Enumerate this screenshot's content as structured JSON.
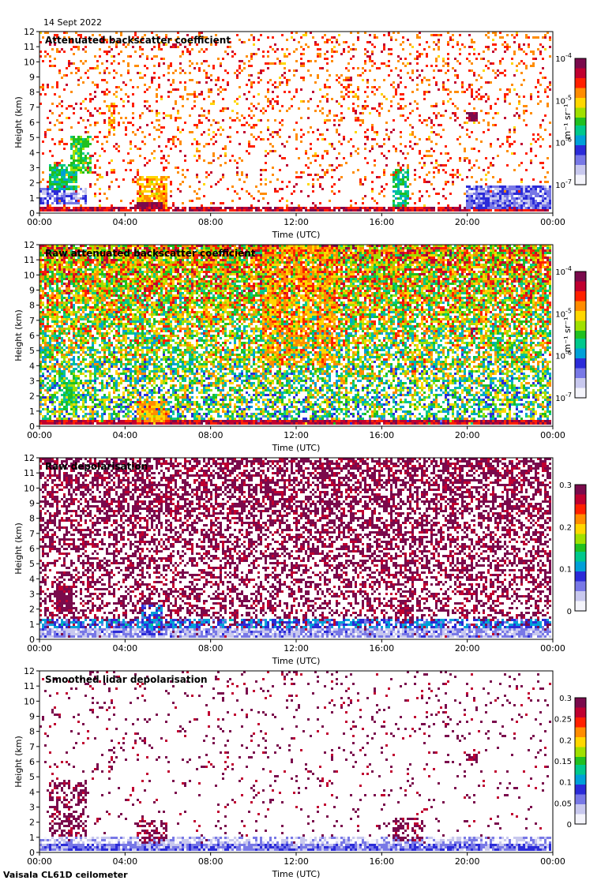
{
  "date_label": "14 Sept 2022",
  "footer": "Vaisala CL61D ceilometer",
  "palette": [
    "#f4f4fb",
    "#c8c8ee",
    "#7878e6",
    "#2b2bd8",
    "#00a0d8",
    "#00c88c",
    "#20c020",
    "#a0e000",
    "#ffd700",
    "#ff8c00",
    "#ff2000",
    "#c00030",
    "#7a0a4c"
  ],
  "chart_data": [
    {
      "type": "heatmap",
      "title": "Attenuated backscatter coefficient",
      "xlabel": "Time (UTC)",
      "ylabel": "Height (km)",
      "x_ticks": [
        "00:00",
        "04:00",
        "08:00",
        "12:00",
        "16:00",
        "20:00",
        "00:00"
      ],
      "xlim_hours": [
        0,
        24
      ],
      "y_ticks": [
        0,
        1,
        2,
        3,
        4,
        5,
        6,
        7,
        8,
        9,
        10,
        11,
        12
      ],
      "ylim_km": [
        0,
        12
      ],
      "colorbar": {
        "scale": "log",
        "unit": "m⁻¹ sr⁻¹",
        "ticks": [
          {
            "base": "10",
            "exp": "-4"
          },
          {
            "base": "10",
            "exp": "-5"
          },
          {
            "base": "10",
            "exp": "-6"
          },
          {
            "base": "10",
            "exp": "-7"
          }
        ],
        "range": [
          1e-07,
          0.0001
        ]
      },
      "features": [
        {
          "t0": 0.0,
          "t1": 24.0,
          "z0": 0.0,
          "z1": 0.25,
          "v": 0.88,
          "density": 0.9
        },
        {
          "t0": 0.0,
          "t1": 2.2,
          "z0": 0.4,
          "z1": 1.5,
          "v": 0.2,
          "density": 0.7
        },
        {
          "t0": 0.4,
          "t1": 1.8,
          "z0": 1.5,
          "z1": 3.2,
          "v": 0.45,
          "density": 0.85
        },
        {
          "t0": 1.5,
          "t1": 2.4,
          "z0": 2.5,
          "z1": 5.0,
          "v": 0.5,
          "density": 0.7
        },
        {
          "t0": 3.2,
          "t1": 3.6,
          "z0": 5.0,
          "z1": 7.3,
          "v": 0.72,
          "density": 0.6
        },
        {
          "t0": 4.6,
          "t1": 6.0,
          "z0": 0.2,
          "z1": 2.4,
          "v": 0.7,
          "density": 0.8
        },
        {
          "t0": 4.6,
          "t1": 5.8,
          "z0": 0.2,
          "z1": 0.6,
          "v": 0.93,
          "density": 0.9
        },
        {
          "t0": 16.6,
          "t1": 17.3,
          "z0": 0.3,
          "z1": 2.8,
          "v": 0.45,
          "density": 0.7
        },
        {
          "t0": 20.0,
          "t1": 20.6,
          "z0": 6.0,
          "z1": 6.6,
          "v": 0.95,
          "density": 0.8
        },
        {
          "t0": 20.0,
          "t1": 24.0,
          "z0": 0.2,
          "z1": 1.8,
          "v": 0.2,
          "density": 0.9
        }
      ],
      "noise": {
        "max_height_km": 12,
        "level": 0.78,
        "upper_density": 0.18
      }
    },
    {
      "type": "heatmap",
      "title": "Raw attenuated backscatter coefficient",
      "xlabel": "Time (UTC)",
      "ylabel": "Height (km)",
      "x_ticks": [
        "00:00",
        "04:00",
        "08:00",
        "12:00",
        "16:00",
        "20:00",
        "00:00"
      ],
      "xlim_hours": [
        0,
        24
      ],
      "y_ticks": [
        0,
        1,
        2,
        3,
        4,
        5,
        6,
        7,
        8,
        9,
        10,
        11,
        12
      ],
      "ylim_km": [
        0,
        12
      ],
      "colorbar": {
        "scale": "log",
        "unit": "m⁻¹ sr⁻¹",
        "ticks": [
          {
            "base": "10",
            "exp": "-4"
          },
          {
            "base": "10",
            "exp": "-5"
          },
          {
            "base": "10",
            "exp": "-6"
          },
          {
            "base": "10",
            "exp": "-7"
          }
        ],
        "range": [
          1e-07,
          0.0001
        ]
      },
      "features": [
        {
          "t0": 0.0,
          "t1": 24.0,
          "z0": 0.0,
          "z1": 0.25,
          "v": 0.88,
          "density": 0.95
        },
        {
          "t0": 4.6,
          "t1": 6.0,
          "z0": 0.2,
          "z1": 1.6,
          "v": 0.7,
          "density": 0.85
        },
        {
          "t0": 1.0,
          "t1": 1.8,
          "z0": 1.0,
          "z1": 3.0,
          "v": 0.5,
          "density": 0.7
        },
        {
          "t0": 10.5,
          "t1": 14.0,
          "z0": 4.0,
          "z1": 12.0,
          "v": 0.72,
          "density": 0.5
        },
        {
          "t0": 20.2,
          "t1": 20.6,
          "z0": 6.0,
          "z1": 6.5,
          "v": 0.9,
          "density": 0.7
        }
      ],
      "noise": {
        "max_height_km": 12,
        "level": 0.45,
        "upper_density": 0.95
      }
    },
    {
      "type": "heatmap",
      "title": "Raw depolarisation",
      "xlabel": "Time (UTC)",
      "ylabel": "Height (km)",
      "x_ticks": [
        "00:00",
        "04:00",
        "08:00",
        "12:00",
        "16:00",
        "20:00",
        "00:00"
      ],
      "xlim_hours": [
        0,
        24
      ],
      "y_ticks": [
        0,
        1,
        2,
        3,
        4,
        5,
        6,
        7,
        8,
        9,
        10,
        11,
        12
      ],
      "ylim_km": [
        0,
        12
      ],
      "colorbar": {
        "scale": "linear",
        "unit": "",
        "ticks": [
          {
            "base": "0.3",
            "exp": ""
          },
          {
            "base": "0.2",
            "exp": ""
          },
          {
            "base": "0.1",
            "exp": ""
          },
          {
            "base": "0",
            "exp": ""
          }
        ],
        "range": [
          0,
          0.3
        ]
      },
      "features": [
        {
          "t0": 0.0,
          "t1": 24.0,
          "z0": 0.0,
          "z1": 0.6,
          "v": 0.15,
          "density": 0.95
        },
        {
          "t0": 0.0,
          "t1": 24.0,
          "z0": 0.6,
          "z1": 1.2,
          "v": 0.3,
          "density": 0.6
        },
        {
          "t0": 0.8,
          "t1": 1.6,
          "z0": 1.8,
          "z1": 3.5,
          "v": 0.97,
          "density": 0.9
        },
        {
          "t0": 4.8,
          "t1": 5.8,
          "z0": 0.1,
          "z1": 2.2,
          "v": 0.3,
          "density": 0.6
        },
        {
          "t0": 16.9,
          "t1": 17.3,
          "z0": 1.0,
          "z1": 2.6,
          "v": 0.97,
          "density": 0.7
        }
      ],
      "noise": {
        "max_height_km": 12,
        "level": 0.97,
        "upper_density": 0.62
      }
    },
    {
      "type": "heatmap",
      "title": "Smoothed lidar depolarisation",
      "xlabel": "Time (UTC)",
      "ylabel": "Height (km)",
      "x_ticks": [
        "00:00",
        "04:00",
        "08:00",
        "12:00",
        "16:00",
        "20:00",
        "00:00"
      ],
      "xlim_hours": [
        0,
        24
      ],
      "y_ticks": [
        0,
        1,
        2,
        3,
        4,
        5,
        6,
        7,
        8,
        9,
        10,
        11,
        12
      ],
      "ylim_km": [
        0,
        12
      ],
      "colorbar": {
        "scale": "linear",
        "unit": "",
        "ticks": [
          {
            "base": "0.3",
            "exp": ""
          },
          {
            "base": "0.25",
            "exp": ""
          },
          {
            "base": "0.2",
            "exp": ""
          },
          {
            "base": "0.15",
            "exp": ""
          },
          {
            "base": "0.1",
            "exp": ""
          },
          {
            "base": "0.05",
            "exp": ""
          },
          {
            "base": "0",
            "exp": ""
          }
        ],
        "range": [
          0,
          0.3
        ]
      },
      "features": [
        {
          "t0": 0.0,
          "t1": 24.0,
          "z0": 0.0,
          "z1": 0.5,
          "v": 0.2,
          "density": 0.95
        },
        {
          "t0": 0.0,
          "t1": 24.0,
          "z0": 0.5,
          "z1": 1.0,
          "v": 0.12,
          "density": 0.7
        },
        {
          "t0": 0.4,
          "t1": 2.2,
          "z0": 1.0,
          "z1": 4.8,
          "v": 0.97,
          "density": 0.45
        },
        {
          "t0": 3.2,
          "t1": 3.6,
          "z0": 5.0,
          "z1": 7.0,
          "v": 0.97,
          "density": 0.3
        },
        {
          "t0": 4.6,
          "t1": 6.0,
          "z0": 0.4,
          "z1": 2.0,
          "v": 0.97,
          "density": 0.5
        },
        {
          "t0": 16.6,
          "t1": 18.0,
          "z0": 0.6,
          "z1": 2.2,
          "v": 0.97,
          "density": 0.5
        },
        {
          "t0": 20.0,
          "t1": 20.6,
          "z0": 6.0,
          "z1": 6.5,
          "v": 0.97,
          "density": 0.8
        }
      ],
      "noise": {
        "max_height_km": 12,
        "level": 0.97,
        "upper_density": 0.07
      }
    }
  ]
}
